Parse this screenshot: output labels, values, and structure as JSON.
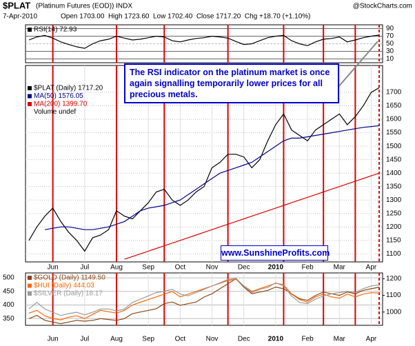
{
  "header": {
    "symbol": "$PLAT",
    "name": "(Platinum Futures (EOD)) INDX",
    "source": "@StockCharts.com",
    "date": "7-Apr-2010",
    "quote": "Open 1703.00  High 1723.60  Low 1702.40  Close 1717.20  Chg +18.70 (+1.10%)"
  },
  "chart_data": [
    {
      "type": "line",
      "ylim": [
        0,
        100
      ],
      "yticks": [
        90,
        70,
        50,
        30,
        10
      ],
      "series": [
        {
          "name": "RSI(14) 72.93",
          "color": "#000000",
          "values": [
            60,
            68,
            72,
            65,
            55,
            48,
            42,
            38,
            50,
            58,
            62,
            70,
            65,
            60,
            62,
            66,
            70,
            68,
            58,
            55,
            60,
            64,
            66,
            70,
            68,
            65,
            56,
            48,
            50,
            58,
            66,
            70,
            72,
            58,
            50,
            45,
            55,
            62,
            64,
            68,
            55,
            60,
            66,
            70,
            72.93
          ]
        }
      ]
    },
    {
      "type": "line",
      "ylim": [
        1070,
        1800
      ],
      "yticks": [
        1100,
        1150,
        1200,
        1250,
        1300,
        1350,
        1400,
        1450,
        1500,
        1550,
        1600,
        1650,
        1700
      ],
      "grid": true,
      "categories": [
        null,
        null,
        null,
        "Jun",
        null,
        null,
        null,
        "Jul",
        null,
        null,
        null,
        "Aug",
        null,
        null,
        null,
        "Sep",
        null,
        null,
        null,
        "Oct",
        null,
        null,
        null,
        "Nov",
        null,
        null,
        null,
        "Dec",
        null,
        null,
        null,
        "2010",
        null,
        null,
        null,
        "Feb",
        null,
        null,
        null,
        "Mar",
        null,
        null,
        null,
        "Apr",
        null
      ],
      "vertical_lines": [
        3,
        11,
        17,
        25,
        32,
        37,
        41
      ],
      "dashed_vertical_lines": [
        44
      ],
      "legend_note": "Volume undef",
      "annotation": "The RSI indicator on the platinum market is once again signalling temporarily lower prices for all precious metals.",
      "watermark": "www.SunshineProfits.com",
      "series": [
        {
          "name": "$PLAT (Daily) 1717.20",
          "color": "#000000",
          "values": [
            1150,
            1200,
            1240,
            1270,
            1220,
            1180,
            1150,
            1110,
            1160,
            1170,
            1190,
            1260,
            1240,
            1230,
            1260,
            1290,
            1330,
            1340,
            1300,
            1280,
            1300,
            1330,
            1350,
            1420,
            1440,
            1470,
            1470,
            1460,
            1420,
            1450,
            1520,
            1580,
            1620,
            1560,
            1540,
            1520,
            1560,
            1580,
            1600,
            1620,
            1580,
            1610,
            1650,
            1700,
            1717.2
          ]
        },
        {
          "name": "MA(50) 1576.05",
          "color": "#00008b",
          "values": [
            null,
            null,
            1190,
            1195,
            1200,
            1200,
            1195,
            1190,
            1190,
            1195,
            1200,
            1210,
            1220,
            1240,
            1260,
            1270,
            1275,
            1280,
            1290,
            1300,
            1320,
            1340,
            1360,
            1380,
            1400,
            1410,
            1420,
            1430,
            1440,
            1460,
            1480,
            1500,
            1520,
            1530,
            1530,
            1535,
            1540,
            1545,
            1550,
            1555,
            1560,
            1565,
            1570,
            1573,
            1576.05
          ]
        },
        {
          "name": "MA(200) 1399.70",
          "color": "#dd0000",
          "values": [
            null,
            null,
            null,
            null,
            null,
            null,
            null,
            null,
            null,
            null,
            null,
            null,
            1080,
            1090,
            1100,
            1110,
            1120,
            1130,
            1140,
            1150,
            1160,
            1170,
            1180,
            1190,
            1200,
            1210,
            1220,
            1230,
            1240,
            1250,
            1260,
            1270,
            1280,
            1290,
            1300,
            1310,
            1320,
            1330,
            1340,
            1350,
            1360,
            1370,
            1380,
            1390,
            1399.7
          ]
        }
      ]
    },
    {
      "type": "line",
      "ylim": [
        325,
        518
      ],
      "yticks": [
        350,
        400,
        450,
        500
      ],
      "y2lim": [
        920,
        1235
      ],
      "y2ticks": [
        1000,
        1100,
        1200
      ],
      "y3lim": [
        12,
        20
      ],
      "categories": [
        null,
        null,
        null,
        "Jun",
        null,
        null,
        null,
        "Jul",
        null,
        null,
        null,
        "Aug",
        null,
        null,
        null,
        "Sep",
        null,
        null,
        null,
        "Oct",
        null,
        null,
        null,
        "Nov",
        null,
        null,
        null,
        "Dec",
        null,
        null,
        null,
        "2010",
        null,
        null,
        null,
        "Feb",
        null,
        null,
        null,
        "Mar",
        null,
        null,
        null,
        "Apr",
        null
      ],
      "series": [
        {
          "name": "$GOLD (Daily) 1149.50",
          "color": "#8b4513",
          "axis": "y2",
          "values": [
            960,
            980,
            950,
            940,
            930,
            940,
            950,
            945,
            950,
            960,
            955,
            950,
            960,
            990,
            1000,
            1010,
            1020,
            1050,
            1060,
            1040,
            1050,
            1060,
            1090,
            1110,
            1140,
            1170,
            1200,
            1150,
            1110,
            1120,
            1130,
            1150,
            1140,
            1110,
            1080,
            1070,
            1100,
            1120,
            1110,
            1100,
            1120,
            1110,
            1130,
            1140,
            1149.5
          ]
        },
        {
          "name": "$HUI (Daily) 444.03",
          "color": "#ff6600",
          "values": [
            370,
            380,
            360,
            350,
            345,
            355,
            360,
            350,
            365,
            380,
            375,
            370,
            380,
            400,
            410,
            420,
            430,
            440,
            450,
            430,
            440,
            450,
            460,
            470,
            480,
            490,
            495,
            470,
            450,
            460,
            470,
            480,
            475,
            440,
            420,
            410,
            430,
            440,
            430,
            425,
            440,
            430,
            440,
            445,
            444.03
          ]
        },
        {
          "name": "$SILVER (Daily) 18.17",
          "color": "#999999",
          "axis": "y3",
          "values": [
            14.5,
            15.5,
            14.5,
            14,
            13.5,
            13.8,
            14,
            13.6,
            14,
            14.5,
            14.5,
            14.2,
            14.5,
            15.5,
            16,
            16.5,
            17,
            17.2,
            17.5,
            16.8,
            16.5,
            17,
            17.5,
            18,
            18.5,
            19,
            19.2,
            18,
            17,
            17.5,
            17.8,
            18.5,
            18,
            16.5,
            15.5,
            15.3,
            16,
            16.5,
            16.8,
            17,
            17.2,
            17,
            17.6,
            18,
            18.17
          ]
        }
      ]
    }
  ]
}
